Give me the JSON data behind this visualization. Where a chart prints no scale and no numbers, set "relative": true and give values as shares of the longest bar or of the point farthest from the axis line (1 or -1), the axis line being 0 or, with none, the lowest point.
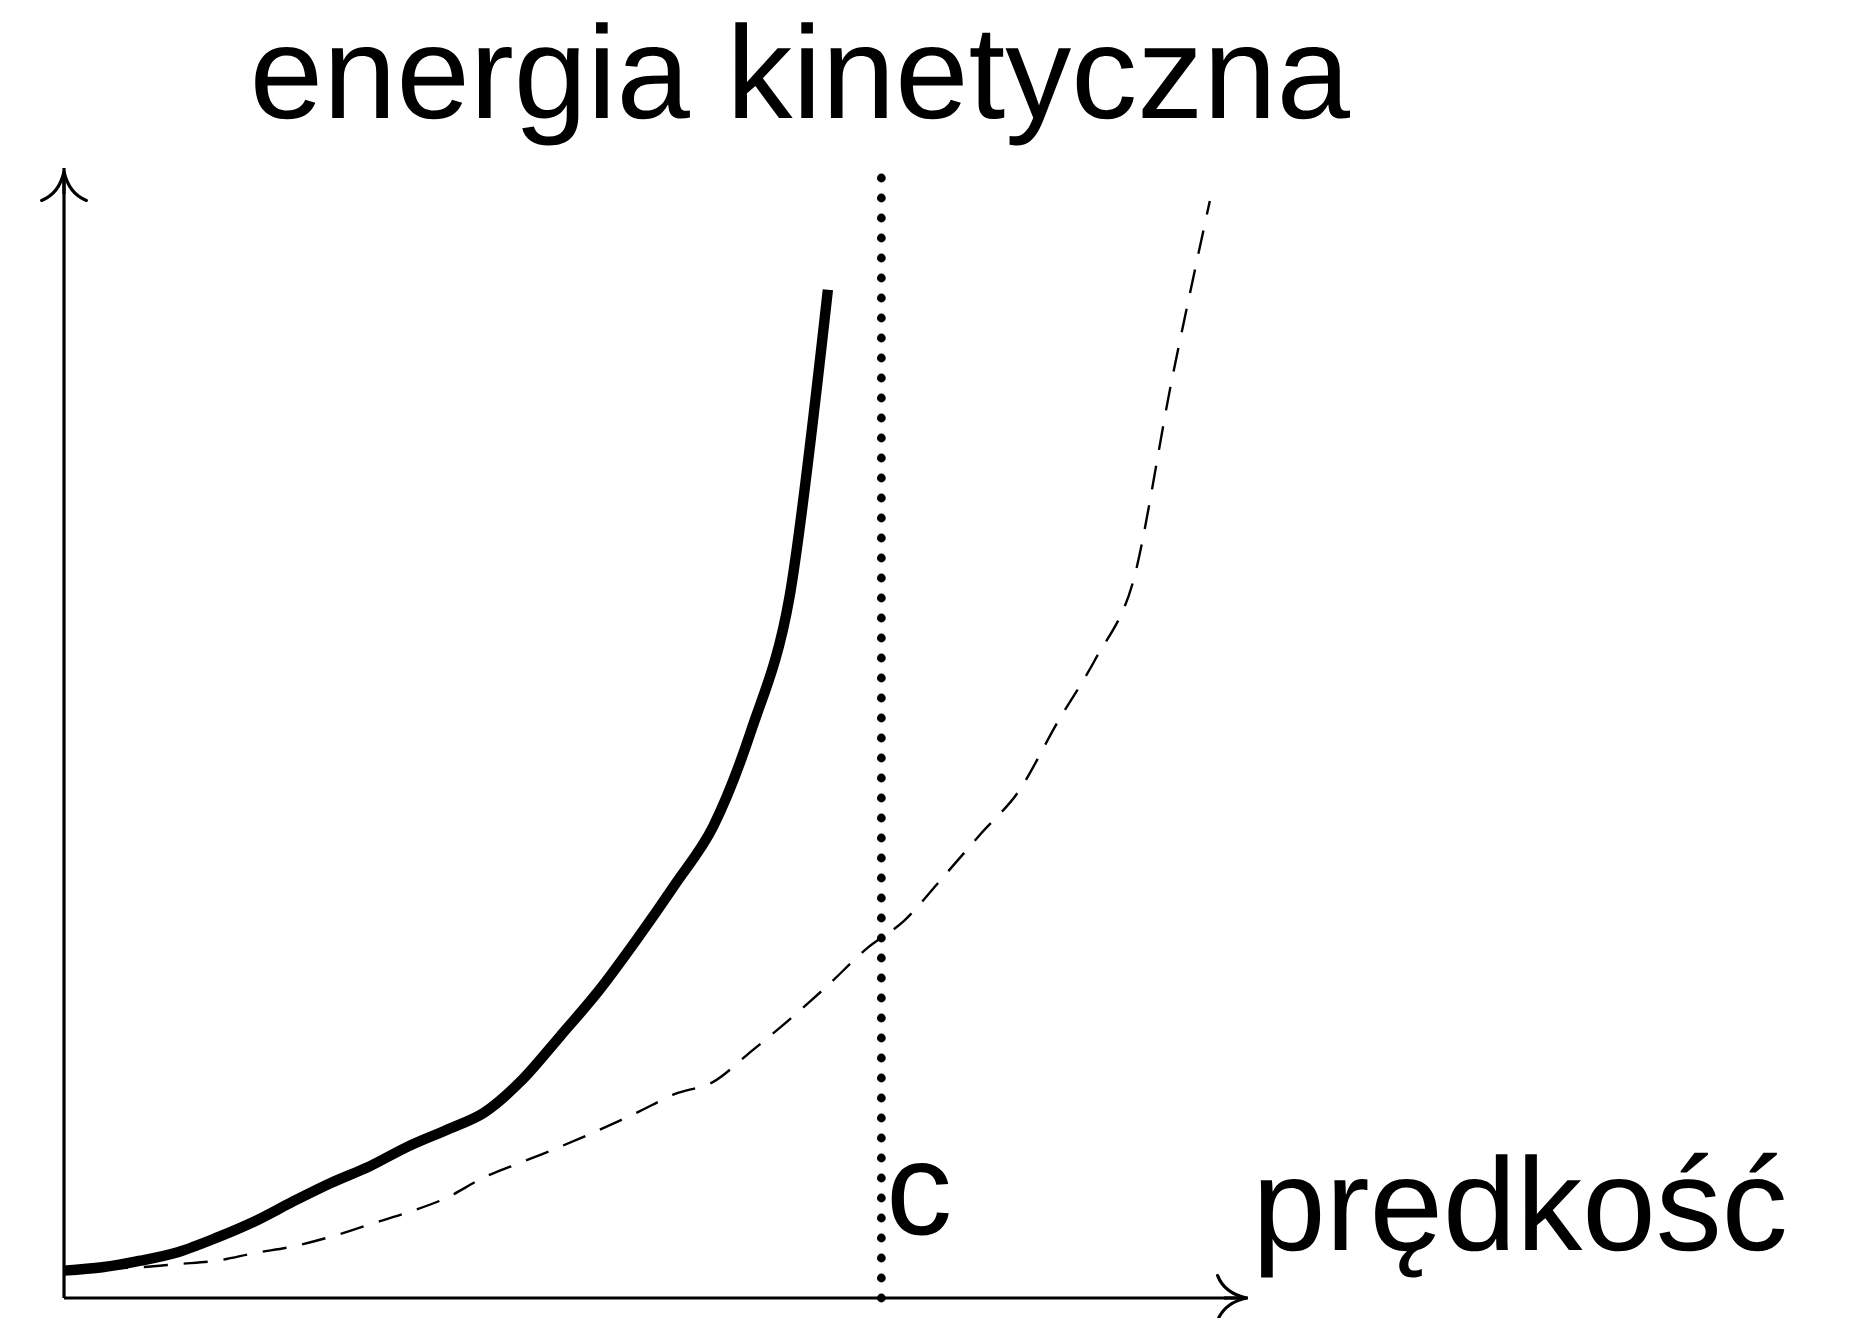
{
  "chart_data": {
    "type": "line",
    "relative": true,
    "title": "energia kinetyczna",
    "xlabel": "prędkość",
    "annotations": [
      "c"
    ],
    "categories": [
      null,
      null,
      null,
      null,
      null,
      null,
      null,
      null,
      null,
      null,
      null,
      null,
      null,
      null,
      null,
      null,
      null,
      null,
      null,
      null,
      null,
      null,
      null,
      null,
      null,
      null,
      null,
      null,
      null,
      null,
      null
    ],
    "series": [
      {
        "color": "#000000",
        "line_style": "solid",
        "values": [
          0.025,
          0.028,
          0.034,
          0.042,
          0.055,
          0.07,
          0.088,
          0.105,
          0.12,
          0.138,
          0.153,
          0.169,
          0.199,
          0.239,
          0.28,
          0.327,
          0.377,
          0.43,
          0.518,
          0.64,
          0.919,
          null,
          null,
          null,
          null,
          null,
          null,
          null,
          null,
          null,
          null
        ]
      },
      {
        "color": "#000000",
        "line_style": "dashed",
        "values": [
          0.025,
          0.027,
          0.028,
          0.031,
          0.034,
          0.041,
          0.047,
          0.056,
          0.067,
          0.078,
          0.091,
          0.11,
          0.124,
          0.138,
          0.153,
          0.169,
          0.186,
          0.197,
          0.225,
          0.254,
          0.285,
          0.318,
          0.344,
          0.383,
          0.423,
          0.462,
          0.524,
          0.582,
          0.654,
          0.836,
          1.0
        ]
      }
    ]
  }
}
